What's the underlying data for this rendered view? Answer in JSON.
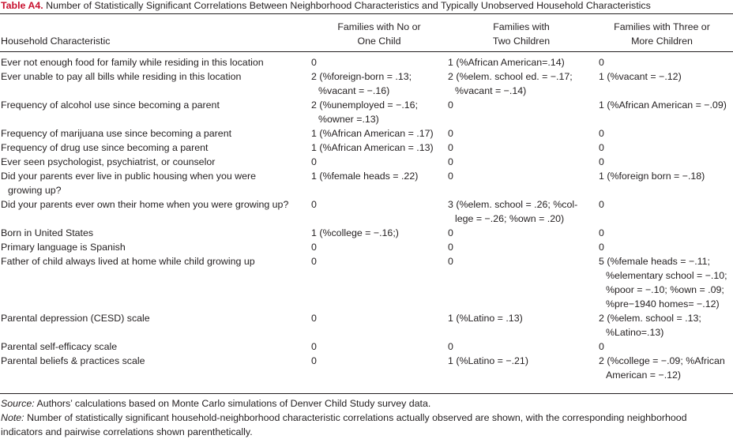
{
  "caption": {
    "label": "Table A4.",
    "text": "Number of Statistically Significant Correlations Between Neighborhood Characteristics and Typically Unobserved Household Characteristics"
  },
  "headers": {
    "col0": "Household Characteristic",
    "col1_line1": "Families with No or",
    "col1_line2": "One Child",
    "col2_line1": "Families with",
    "col2_line2": "Two Children",
    "col3_line1": "Families with Three or",
    "col3_line2": "More Children"
  },
  "rows": [
    {
      "label": [
        "Ever not enough food for family while residing in this location"
      ],
      "c1": [
        "0"
      ],
      "c2": [
        "1 (%African American=.14)"
      ],
      "c3": [
        "0"
      ]
    },
    {
      "label": [
        "Ever unable to pay all bills while residing in this location"
      ],
      "c1": [
        "2 (%foreign-born = .13;",
        "%vacant = −.16)"
      ],
      "c2": [
        "2 (%elem. school ed. = −.17;",
        "%vacant = −.14)"
      ],
      "c3": [
        "1 (%vacant = −.12)"
      ]
    },
    {
      "label": [
        "Frequency of alcohol use since becoming a parent"
      ],
      "c1": [
        "2 (%unemployed = −.16;",
        "%owner =.13)"
      ],
      "c2": [
        "0"
      ],
      "c3": [
        "1 (%African American = −.09)"
      ]
    },
    {
      "label": [
        "Frequency of marijuana use since becoming a parent"
      ],
      "c1": [
        "1 (%African American = .17)"
      ],
      "c2": [
        "0"
      ],
      "c3": [
        "0"
      ]
    },
    {
      "label": [
        "Frequency of drug use since becoming a parent"
      ],
      "c1": [
        "1 (%African American = .13)"
      ],
      "c2": [
        "0"
      ],
      "c3": [
        "0"
      ]
    },
    {
      "label": [
        "Ever seen psychologist, psychiatrist, or counselor"
      ],
      "c1": [
        "0"
      ],
      "c2": [
        "0"
      ],
      "c3": [
        "0"
      ]
    },
    {
      "label": [
        "Did your parents ever live in public housing when you were",
        "growing up?"
      ],
      "c1": [
        "1 (%female heads = .22)"
      ],
      "c2": [
        "0"
      ],
      "c3": [
        "1 (%foreign born = −.18)"
      ]
    },
    {
      "label": [
        "Did your parents ever own their home when you were growing up?"
      ],
      "c1": [
        "0"
      ],
      "c2": [
        "3 (%elem. school = .26; %col-",
        "lege = −.26; %own = .20)"
      ],
      "c3": [
        "0"
      ]
    },
    {
      "label": [
        "Born in United States"
      ],
      "c1": [
        "1 (%college = −.16;)"
      ],
      "c2": [
        "0"
      ],
      "c3": [
        "0"
      ]
    },
    {
      "label": [
        "Primary language is Spanish"
      ],
      "c1": [
        "0"
      ],
      "c2": [
        "0"
      ],
      "c3": [
        "0"
      ]
    },
    {
      "label": [
        "Father of child always lived at home while child growing up"
      ],
      "c1": [
        "0"
      ],
      "c2": [
        "0"
      ],
      "c3": [
        "5 (%female heads = −.11;",
        "%elementary school = −.10;",
        "%poor = −.10; %own = .09;",
        "%pre−1940 homes= −.12)"
      ]
    },
    {
      "label": [
        "Parental depression (CESD) scale"
      ],
      "c1": [
        "0"
      ],
      "c2": [
        "1 (%Latino = .13)"
      ],
      "c3": [
        "2 (%elem. school = .13;",
        "%Latino=.13)"
      ]
    },
    {
      "label": [
        "Parental self-efficacy scale"
      ],
      "c1": [
        "0"
      ],
      "c2": [
        "0"
      ],
      "c3": [
        "0"
      ]
    },
    {
      "label": [
        "Parental beliefs & practices scale"
      ],
      "c1": [
        "0"
      ],
      "c2": [
        "1 (%Latino = −.21)"
      ],
      "c3": [
        "2 (%college = −.09; %African",
        "American = −.12)"
      ]
    }
  ],
  "footnotes": {
    "source_label": "Source:",
    "source_text": " Authors’ calculations based on Monte Carlo simulations of Denver Child Study survey data.",
    "note_label": "Note:",
    "note_text_line1": " Number of statistically significant household-neighborhood characteristic correlations actually observed are shown, with the corresponding neighborhood",
    "note_text_line2": "indicators and pairwise correlations shown parenthetically."
  }
}
